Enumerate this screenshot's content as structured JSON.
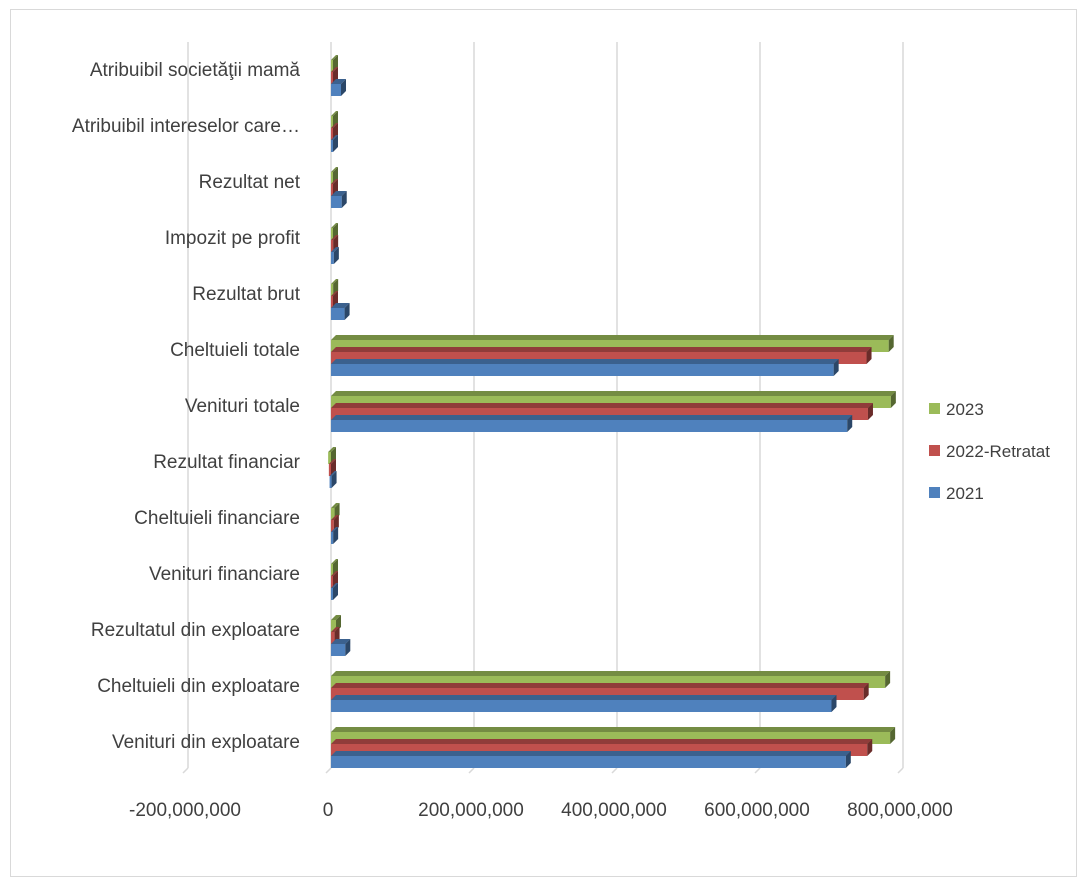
{
  "colors": {
    "2021": "#4f81bd",
    "2022-Retratat": "#c0504d",
    "2023": "#9bbb59",
    "grid": "#d9d9d9",
    "text": "#404040"
  },
  "chart_data": {
    "type": "bar",
    "orientation": "horizontal",
    "title": "",
    "xlabel": "",
    "ylabel": "",
    "xlim": [
      -200000000,
      800000000
    ],
    "x_ticks": [
      -200000000,
      0,
      200000000,
      400000000,
      600000000,
      800000000
    ],
    "x_tick_labels": [
      "-200,000,000",
      "0",
      "200,000,000",
      "400,000,000",
      "600,000,000",
      "800,000,000"
    ],
    "grid": "vertical",
    "legend_position": "right",
    "categories": [
      "Venituri din exploatare",
      "Cheltuieli din exploatare",
      "Rezultatul din exploatare",
      "Venituri financiare",
      "Cheltuieli financiare",
      "Rezultat financiar",
      "Venituri totale",
      "Cheltuieli totale",
      "Rezultat brut",
      "Impozit pe profit ",
      "Rezultat net",
      "Atribuibil intereselor care…",
      "Atribuibil societăţii mamă"
    ],
    "series": [
      {
        "name": "2021",
        "values": [
          720000000,
          700000000,
          20000000,
          1000000,
          3000000,
          -2000000,
          722000000,
          703000000,
          19000000,
          4000000,
          15000000,
          1000000,
          14000000
        ]
      },
      {
        "name": "2022-Retratat",
        "values": [
          750000000,
          745000000,
          5000000,
          1000000,
          4000000,
          -3000000,
          751000000,
          749000000,
          2000000,
          3000000,
          1000000,
          500000,
          500000
        ]
      },
      {
        "name": "2023",
        "values": [
          782000000,
          775000000,
          7000000,
          1000000,
          5000000,
          -4000000,
          783000000,
          780000000,
          3000000,
          2000000,
          1000000,
          500000,
          500000
        ]
      }
    ]
  }
}
